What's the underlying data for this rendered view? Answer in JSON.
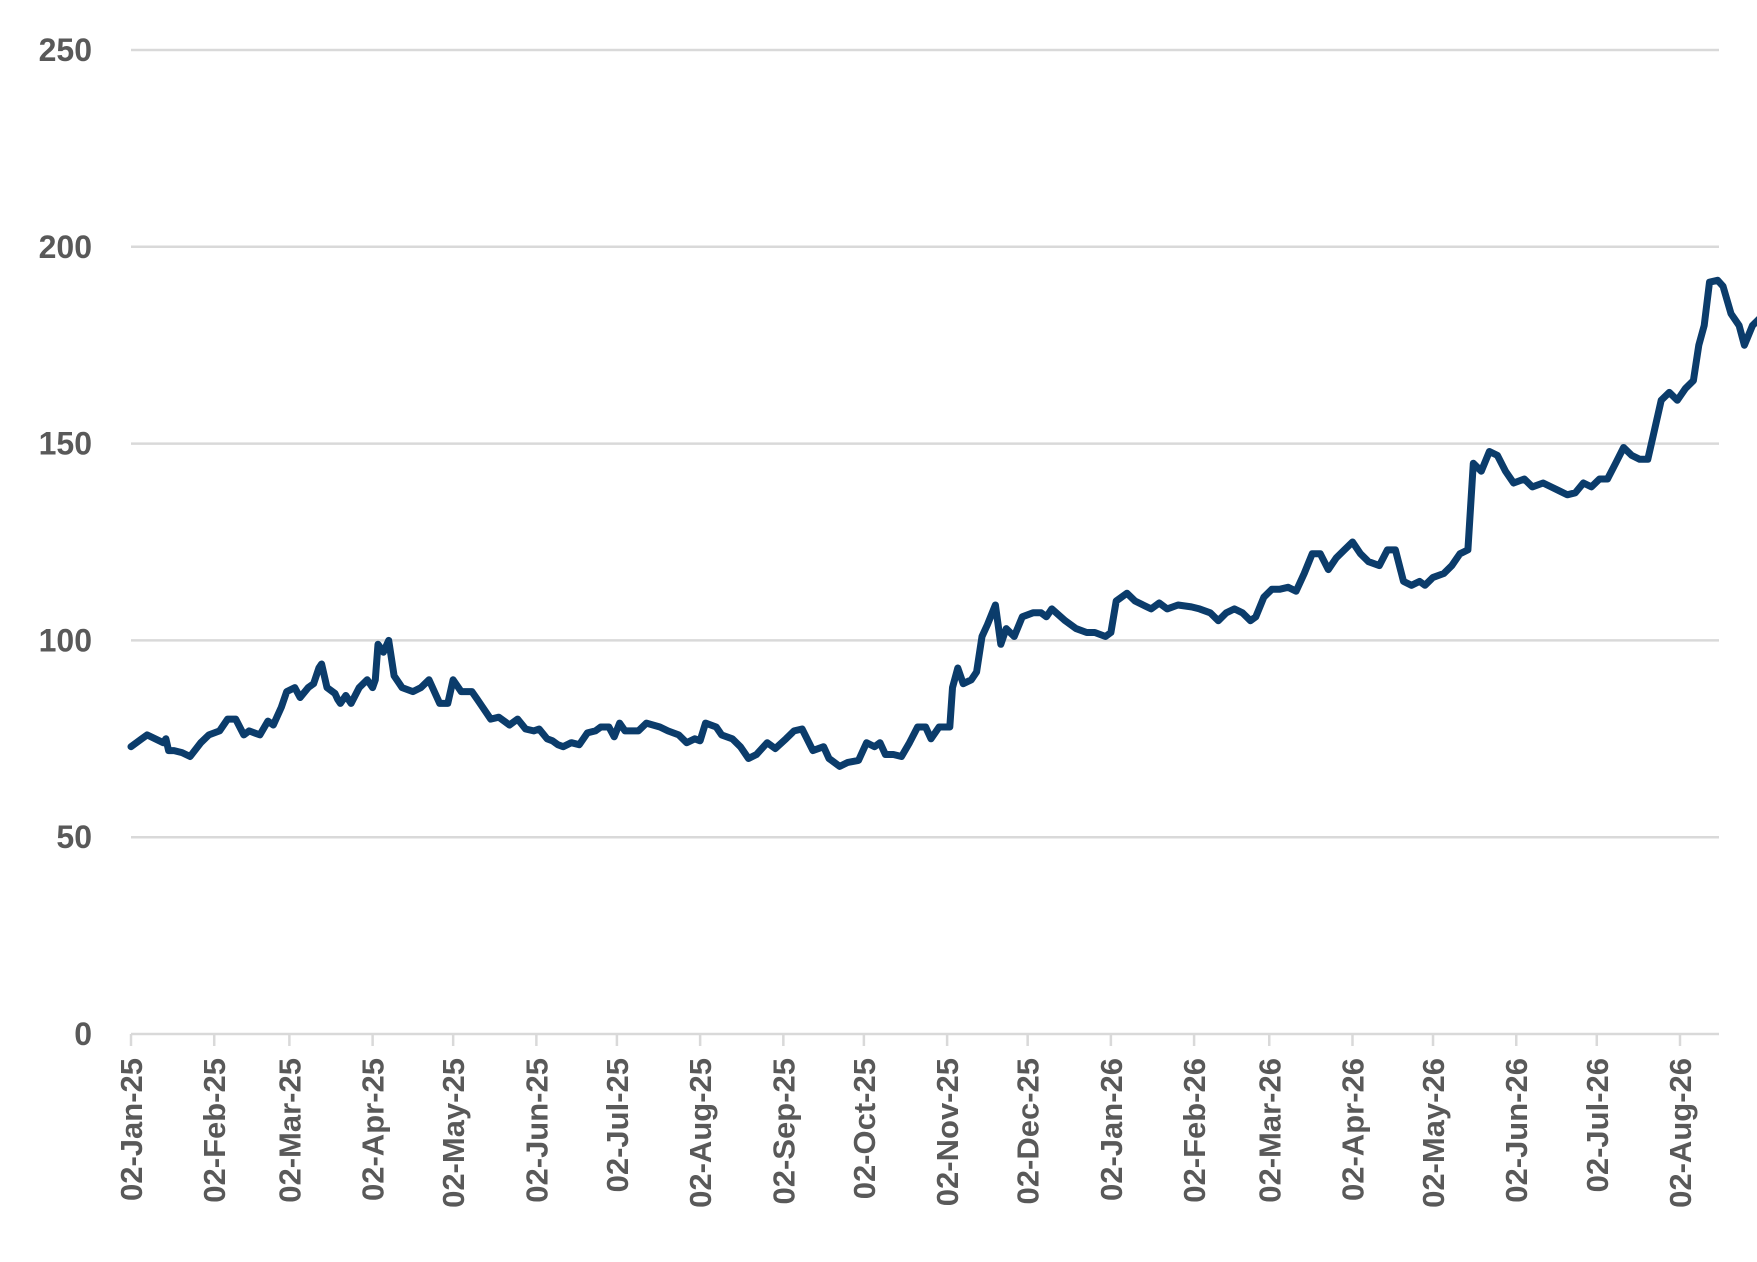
{
  "chart_data": {
    "type": "line",
    "title": "",
    "xlabel": "",
    "ylabel": "",
    "ylim": [
      0,
      250
    ],
    "yticks": [
      0,
      50,
      100,
      150,
      200,
      250
    ],
    "xlim": [
      "2025-01-02",
      "2026-08-15"
    ],
    "x_tick_labels": [
      "02-Jan-25",
      "02-Feb-25",
      "02-Mar-25",
      "02-Apr-25",
      "02-May-25",
      "02-Jun-25",
      "02-Jul-25",
      "02-Aug-25",
      "02-Sep-25",
      "02-Oct-25",
      "02-Nov-25",
      "02-Dec-25",
      "02-Jan-26",
      "02-Feb-26",
      "02-Mar-26",
      "02-Apr-26",
      "02-May-26",
      "02-Jun-26",
      "02-Jul-26",
      "02-Aug-26"
    ],
    "grid": true,
    "legend": "none",
    "color": "#0b3c6b",
    "series": [
      {
        "points": [
          [
            "2025-01-02",
            73
          ],
          [
            "2025-01-06",
            75
          ],
          [
            "2025-01-08",
            76
          ],
          [
            "2025-01-11",
            75
          ],
          [
            "2025-01-14",
            74
          ],
          [
            "2025-01-15",
            75
          ],
          [
            "2025-01-16",
            72
          ],
          [
            "2025-01-18",
            72
          ],
          [
            "2025-01-21",
            71.5
          ],
          [
            "2025-01-24",
            70.5
          ],
          [
            "2025-01-28",
            74
          ],
          [
            "2025-01-31",
            76
          ],
          [
            "2025-02-04",
            77
          ],
          [
            "2025-02-07",
            80
          ],
          [
            "2025-02-10",
            80
          ],
          [
            "2025-02-13",
            76
          ],
          [
            "2025-02-15",
            77
          ],
          [
            "2025-02-19",
            76
          ],
          [
            "2025-02-22",
            79.5
          ],
          [
            "2025-02-24",
            78.5
          ],
          [
            "2025-02-27",
            83
          ],
          [
            "2025-03-01",
            87
          ],
          [
            "2025-03-04",
            88
          ],
          [
            "2025-03-06",
            85.5
          ],
          [
            "2025-03-09",
            88
          ],
          [
            "2025-03-11",
            89
          ],
          [
            "2025-03-13",
            93
          ],
          [
            "2025-03-14",
            94
          ],
          [
            "2025-03-16",
            88
          ],
          [
            "2025-03-19",
            86.5
          ],
          [
            "2025-03-20",
            85
          ],
          [
            "2025-03-21",
            84
          ],
          [
            "2025-03-23",
            86
          ],
          [
            "2025-03-25",
            84
          ],
          [
            "2025-03-28",
            88
          ],
          [
            "2025-03-31",
            90
          ],
          [
            "2025-04-02",
            88
          ],
          [
            "2025-04-03",
            90
          ],
          [
            "2025-04-04",
            99
          ],
          [
            "2025-04-06",
            97
          ],
          [
            "2025-04-08",
            100
          ],
          [
            "2025-04-10",
            91
          ],
          [
            "2025-04-13",
            88
          ],
          [
            "2025-04-17",
            87
          ],
          [
            "2025-04-20",
            88
          ],
          [
            "2025-04-23",
            90
          ],
          [
            "2025-04-27",
            84
          ],
          [
            "2025-04-30",
            84
          ],
          [
            "2025-05-02",
            90
          ],
          [
            "2025-05-05",
            87
          ],
          [
            "2025-05-09",
            87
          ],
          [
            "2025-05-11",
            85
          ],
          [
            "2025-05-13",
            83
          ],
          [
            "2025-05-16",
            80
          ],
          [
            "2025-05-19",
            80.5
          ],
          [
            "2025-05-23",
            78.5
          ],
          [
            "2025-05-26",
            80
          ],
          [
            "2025-05-29",
            77.5
          ],
          [
            "2025-06-01",
            77
          ],
          [
            "2025-06-03",
            77.5
          ],
          [
            "2025-06-06",
            75
          ],
          [
            "2025-06-08",
            74.5
          ],
          [
            "2025-06-10",
            73.5
          ],
          [
            "2025-06-12",
            73
          ],
          [
            "2025-06-15",
            74
          ],
          [
            "2025-06-18",
            73.5
          ],
          [
            "2025-06-21",
            76.5
          ],
          [
            "2025-06-24",
            77
          ],
          [
            "2025-06-26",
            78
          ],
          [
            "2025-06-29",
            78
          ],
          [
            "2025-07-01",
            75.5
          ],
          [
            "2025-07-03",
            79
          ],
          [
            "2025-07-05",
            77
          ],
          [
            "2025-07-10",
            77
          ],
          [
            "2025-07-13",
            79
          ],
          [
            "2025-07-18",
            78
          ],
          [
            "2025-07-21",
            77
          ],
          [
            "2025-07-25",
            76
          ],
          [
            "2025-07-28",
            74
          ],
          [
            "2025-07-31",
            75
          ],
          [
            "2025-08-02",
            74.5
          ],
          [
            "2025-08-04",
            79
          ],
          [
            "2025-08-08",
            78
          ],
          [
            "2025-08-10",
            76
          ],
          [
            "2025-08-14",
            75
          ],
          [
            "2025-08-17",
            73
          ],
          [
            "2025-08-20",
            70
          ],
          [
            "2025-08-23",
            71
          ],
          [
            "2025-08-27",
            74
          ],
          [
            "2025-08-30",
            72.5
          ],
          [
            "2025-09-03",
            75
          ],
          [
            "2025-09-06",
            77
          ],
          [
            "2025-09-09",
            77.5
          ],
          [
            "2025-09-13",
            72
          ],
          [
            "2025-09-17",
            73
          ],
          [
            "2025-09-19",
            70
          ],
          [
            "2025-09-23",
            68
          ],
          [
            "2025-09-26",
            69
          ],
          [
            "2025-09-30",
            69.5
          ],
          [
            "2025-10-03",
            74
          ],
          [
            "2025-10-06",
            73
          ],
          [
            "2025-10-08",
            74
          ],
          [
            "2025-10-10",
            71
          ],
          [
            "2025-10-13",
            71
          ],
          [
            "2025-10-16",
            70.5
          ],
          [
            "2025-10-19",
            74
          ],
          [
            "2025-10-22",
            78
          ],
          [
            "2025-10-25",
            78
          ],
          [
            "2025-10-27",
            75
          ],
          [
            "2025-10-30",
            78
          ],
          [
            "2025-11-03",
            78
          ],
          [
            "2025-11-04",
            88
          ],
          [
            "2025-11-06",
            93
          ],
          [
            "2025-11-08",
            89
          ],
          [
            "2025-11-11",
            90
          ],
          [
            "2025-11-13",
            92
          ],
          [
            "2025-11-15",
            101
          ],
          [
            "2025-11-17",
            104
          ],
          [
            "2025-11-20",
            109
          ],
          [
            "2025-11-22",
            99
          ],
          [
            "2025-11-24",
            103
          ],
          [
            "2025-11-27",
            101
          ],
          [
            "2025-11-30",
            106
          ],
          [
            "2025-12-04",
            107
          ],
          [
            "2025-12-07",
            107
          ],
          [
            "2025-12-09",
            106
          ],
          [
            "2025-12-11",
            108
          ],
          [
            "2025-12-16",
            105
          ],
          [
            "2025-12-20",
            103
          ],
          [
            "2025-12-24",
            102
          ],
          [
            "2025-12-27",
            102
          ],
          [
            "2025-12-31",
            101
          ],
          [
            "2026-01-02",
            102
          ],
          [
            "2026-01-04",
            110
          ],
          [
            "2026-01-08",
            112
          ],
          [
            "2026-01-11",
            110
          ],
          [
            "2026-01-14",
            109
          ],
          [
            "2026-01-17",
            108
          ],
          [
            "2026-01-20",
            109.5
          ],
          [
            "2026-01-23",
            108
          ],
          [
            "2026-01-27",
            109
          ],
          [
            "2026-02-01",
            108.5
          ],
          [
            "2026-02-04",
            108
          ],
          [
            "2026-02-08",
            107
          ],
          [
            "2026-02-11",
            105
          ],
          [
            "2026-02-14",
            107
          ],
          [
            "2026-02-17",
            108
          ],
          [
            "2026-02-20",
            107
          ],
          [
            "2026-02-23",
            105
          ],
          [
            "2026-02-25",
            106
          ],
          [
            "2026-02-28",
            111
          ],
          [
            "2026-03-03",
            113
          ],
          [
            "2026-03-06",
            113
          ],
          [
            "2026-03-09",
            113.5
          ],
          [
            "2026-03-12",
            112.5
          ],
          [
            "2026-03-15",
            117
          ],
          [
            "2026-03-18",
            122
          ],
          [
            "2026-03-21",
            122
          ],
          [
            "2026-03-24",
            118
          ],
          [
            "2026-03-27",
            121
          ],
          [
            "2026-03-30",
            123
          ],
          [
            "2026-04-02",
            125
          ],
          [
            "2026-04-05",
            122
          ],
          [
            "2026-04-08",
            120
          ],
          [
            "2026-04-12",
            119
          ],
          [
            "2026-04-15",
            123
          ],
          [
            "2026-04-18",
            123
          ],
          [
            "2026-04-21",
            115
          ],
          [
            "2026-04-24",
            114
          ],
          [
            "2026-04-27",
            115
          ],
          [
            "2026-04-29",
            114
          ],
          [
            "2026-05-02",
            116
          ],
          [
            "2026-05-06",
            117
          ],
          [
            "2026-05-09",
            119
          ],
          [
            "2026-05-12",
            122
          ],
          [
            "2026-05-15",
            123
          ],
          [
            "2026-05-17",
            145
          ],
          [
            "2026-05-20",
            143
          ],
          [
            "2026-05-23",
            148
          ],
          [
            "2026-05-26",
            147
          ],
          [
            "2026-05-29",
            143
          ],
          [
            "2026-06-01",
            140
          ],
          [
            "2026-06-05",
            141
          ],
          [
            "2026-06-08",
            139
          ],
          [
            "2026-06-12",
            140
          ],
          [
            "2026-06-15",
            139
          ],
          [
            "2026-06-18",
            138
          ],
          [
            "2026-06-21",
            137
          ],
          [
            "2026-06-24",
            137.5
          ],
          [
            "2026-06-27",
            140
          ],
          [
            "2026-06-30",
            139
          ],
          [
            "2026-07-03",
            141
          ],
          [
            "2026-07-06",
            141
          ],
          [
            "2026-07-09",
            145
          ],
          [
            "2026-07-12",
            149
          ],
          [
            "2026-07-15",
            147
          ],
          [
            "2026-07-18",
            146
          ],
          [
            "2026-07-21",
            146
          ],
          [
            "2026-07-23",
            152
          ],
          [
            "2026-07-26",
            161
          ],
          [
            "2026-07-29",
            163
          ],
          [
            "2026-08-01",
            161
          ],
          [
            "2026-08-04",
            164
          ],
          [
            "2026-08-07",
            166
          ],
          [
            "2026-08-09",
            175
          ],
          [
            "2026-08-11",
            180
          ],
          [
            "2026-08-13",
            191
          ],
          [
            "2026-08-16",
            191.5
          ],
          [
            "2026-08-18",
            190
          ],
          [
            "2026-08-21",
            183
          ],
          [
            "2026-08-24",
            180
          ],
          [
            "2026-08-26",
            175
          ],
          [
            "2026-08-29",
            180
          ],
          [
            "2026-09-01",
            182
          ],
          [
            "2026-09-04",
            183
          ],
          [
            "2026-09-06",
            178
          ]
        ]
      }
    ]
  }
}
